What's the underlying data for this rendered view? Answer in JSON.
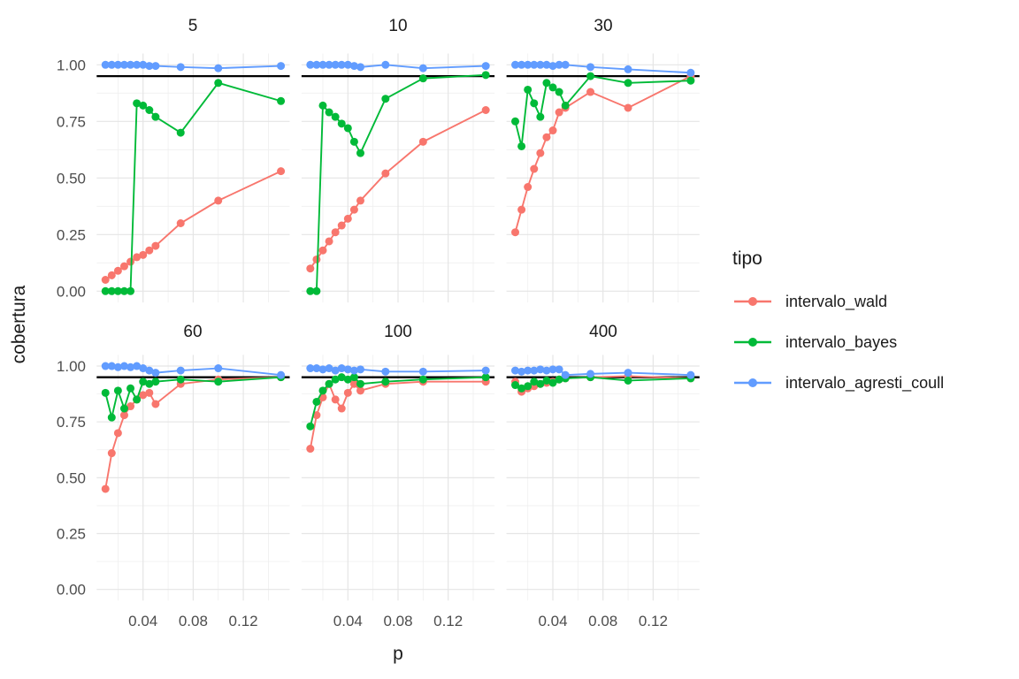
{
  "chart_data": {
    "type": "line",
    "xlabel": "p",
    "ylabel": "cobertura",
    "x_ticks": [
      "0.04",
      "0.08",
      "0.12"
    ],
    "x_tick_values": [
      0.04,
      0.08,
      0.12
    ],
    "y_ticks": [
      "0.00",
      "0.25",
      "0.50",
      "0.75",
      "1.00"
    ],
    "y_tick_values": [
      0,
      0.25,
      0.5,
      0.75,
      1
    ],
    "xlim": [
      0.003,
      0.157
    ],
    "ylim": [
      -0.05,
      1.05
    ],
    "x_minor_gridlines": [
      0.02,
      0.06,
      0.1,
      0.14
    ],
    "y_minor_gridlines": [
      0.125,
      0.375,
      0.625,
      0.875
    ],
    "reference_line_y": 0.95,
    "grid": true,
    "legend_position": "right",
    "legend": {
      "title": "tipo",
      "items": [
        {
          "key": "intervalo_wald",
          "label": "intervalo_wald",
          "color": "#F8766D"
        },
        {
          "key": "intervalo_bayes",
          "label": "intervalo_bayes",
          "color": "#00BA38"
        },
        {
          "key": "intervalo_agresti_coull",
          "label": "intervalo_agresti_coull",
          "color": "#619CFF"
        }
      ]
    },
    "x": [
      0.01,
      0.015,
      0.02,
      0.025,
      0.03,
      0.035,
      0.04,
      0.045,
      0.05,
      0.07,
      0.1,
      0.15
    ],
    "facets": [
      {
        "label": "5",
        "series": {
          "intervalo_wald": [
            0.05,
            0.07,
            0.09,
            0.11,
            0.13,
            0.15,
            0.16,
            0.18,
            0.2,
            0.3,
            0.4,
            0.53
          ],
          "intervalo_bayes": [
            0.0,
            0.0,
            0.0,
            0.0,
            0.0,
            0.83,
            0.82,
            0.8,
            0.77,
            0.7,
            0.92,
            0.84
          ],
          "intervalo_agresti_coull": [
            1.0,
            1.0,
            1.0,
            1.0,
            1.0,
            1.0,
            1.0,
            0.995,
            0.995,
            0.99,
            0.985,
            0.995
          ]
        }
      },
      {
        "label": "10",
        "series": {
          "intervalo_wald": [
            0.1,
            0.14,
            0.18,
            0.22,
            0.26,
            0.29,
            0.32,
            0.36,
            0.4,
            0.52,
            0.66,
            0.8
          ],
          "intervalo_bayes": [
            0.0,
            0.0,
            0.82,
            0.79,
            0.77,
            0.74,
            0.72,
            0.66,
            0.61,
            0.85,
            0.94,
            0.955
          ],
          "intervalo_agresti_coull": [
            1.0,
            1.0,
            1.0,
            1.0,
            1.0,
            1.0,
            1.0,
            0.995,
            0.99,
            1.0,
            0.985,
            0.995
          ]
        }
      },
      {
        "label": "30",
        "series": {
          "intervalo_wald": [
            0.26,
            0.36,
            0.46,
            0.54,
            0.61,
            0.68,
            0.71,
            0.79,
            0.81,
            0.88,
            0.81,
            0.95
          ],
          "intervalo_bayes": [
            0.75,
            0.64,
            0.89,
            0.83,
            0.77,
            0.92,
            0.9,
            0.88,
            0.82,
            0.95,
            0.92,
            0.93
          ],
          "intervalo_agresti_coull": [
            1.0,
            1.0,
            1.0,
            1.0,
            1.0,
            1.0,
            0.995,
            1.0,
            1.0,
            0.99,
            0.98,
            0.965
          ]
        }
      },
      {
        "label": "60",
        "series": {
          "intervalo_wald": [
            0.45,
            0.61,
            0.7,
            0.78,
            0.82,
            0.85,
            0.87,
            0.88,
            0.83,
            0.92,
            0.94,
            0.95
          ],
          "intervalo_bayes": [
            0.88,
            0.77,
            0.89,
            0.81,
            0.9,
            0.85,
            0.93,
            0.92,
            0.93,
            0.94,
            0.93,
            0.95
          ],
          "intervalo_agresti_coull": [
            1.0,
            1.0,
            0.995,
            1.0,
            0.995,
            1.0,
            0.99,
            0.98,
            0.97,
            0.98,
            0.99,
            0.96
          ]
        }
      },
      {
        "label": "100",
        "series": {
          "intervalo_wald": [
            0.63,
            0.78,
            0.86,
            0.92,
            0.85,
            0.81,
            0.88,
            0.92,
            0.89,
            0.92,
            0.93,
            0.93
          ],
          "intervalo_bayes": [
            0.73,
            0.84,
            0.89,
            0.92,
            0.94,
            0.95,
            0.94,
            0.95,
            0.92,
            0.93,
            0.94,
            0.95
          ],
          "intervalo_agresti_coull": [
            0.99,
            0.99,
            0.985,
            0.99,
            0.98,
            0.99,
            0.985,
            0.98,
            0.985,
            0.975,
            0.975,
            0.98
          ]
        }
      },
      {
        "label": "400",
        "series": {
          "intervalo_wald": [
            0.93,
            0.885,
            0.9,
            0.91,
            0.92,
            0.925,
            0.93,
            0.94,
            0.945,
            0.95,
            0.955,
            0.945
          ],
          "intervalo_bayes": [
            0.915,
            0.9,
            0.91,
            0.93,
            0.92,
            0.935,
            0.925,
            0.94,
            0.945,
            0.95,
            0.935,
            0.945
          ],
          "intervalo_agresti_coull": [
            0.98,
            0.975,
            0.98,
            0.98,
            0.985,
            0.98,
            0.985,
            0.985,
            0.96,
            0.965,
            0.97,
            0.96
          ]
        }
      }
    ]
  },
  "colors": {
    "background": "#FFFFFF",
    "grid_major": "#E5E5E5",
    "grid_minor": "#EFEFEF",
    "reference_line": "#000000",
    "tick_text": "#4D4D4D",
    "title_text": "#1A1A1A"
  }
}
